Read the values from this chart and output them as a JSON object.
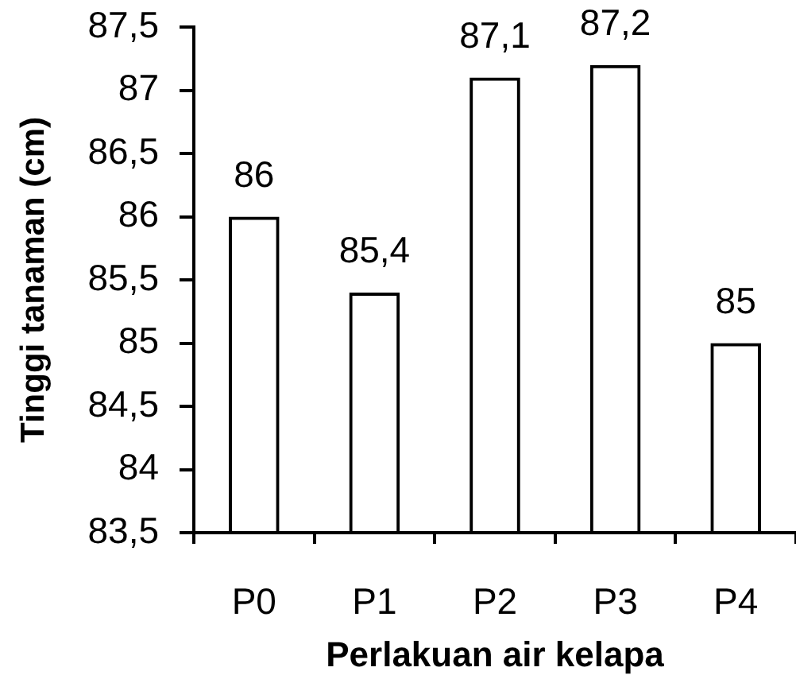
{
  "chart_data": {
    "type": "bar",
    "xlabel": "Perlakuan air kelapa",
    "ylabel": "Tinggi tanaman (cm)",
    "categories": [
      "P0",
      "P1",
      "P2",
      "P3",
      "P4"
    ],
    "values": [
      86,
      85.4,
      87.1,
      87.2,
      85
    ],
    "value_labels": [
      "86",
      "85,4",
      "87,1",
      "87,2",
      "85"
    ],
    "color": "#000000",
    "ylim": [
      83.5,
      87.5
    ],
    "yticks": [
      {
        "value": 83.5,
        "label": "83,5"
      },
      84,
      {
        "value": 84.5,
        "label": "84,5"
      },
      85,
      {
        "value": 85.5,
        "label": "85,5"
      },
      86,
      {
        "value": 86.5,
        "label": "86,5"
      },
      87,
      {
        "value": 87.5,
        "label": "87,5"
      }
    ],
    "grid": false
  }
}
